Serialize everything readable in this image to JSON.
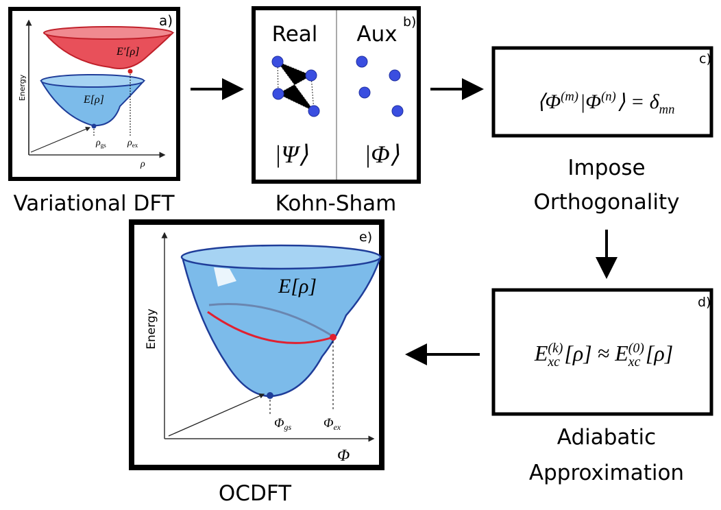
{
  "panels": {
    "a": {
      "label": "a)",
      "caption": "Variational DFT",
      "y_axis": "Energy",
      "x_axis": "ρ",
      "curve_excited": "E′[ρ]",
      "curve_ground": "E[ρ]",
      "point_gs": {
        "symbol": "ρ",
        "sub": "gs"
      },
      "point_ex": {
        "symbol": "ρ",
        "sub": "ex"
      }
    },
    "b": {
      "label": "b)",
      "caption": "Kohn-Sham",
      "left_title": "Real",
      "right_title": "Aux",
      "left_state": "|Ψ⟩",
      "right_state": "|Φ⟩"
    },
    "c": {
      "label": "c)",
      "caption_lines": [
        "Impose",
        "Orthogonality"
      ],
      "equation": [
        {
          "t": "⟨Φ"
        },
        {
          "sup": "(m)"
        },
        {
          "t": "|Φ"
        },
        {
          "sup": "(n)"
        },
        {
          "t": "⟩ = δ"
        },
        {
          "sub": "mn"
        }
      ]
    },
    "d": {
      "label": "d)",
      "caption_lines": [
        "Adiabatic",
        "Approximation"
      ],
      "equation": [
        {
          "t": "E"
        },
        {
          "sup": "(k)",
          "sub": "xc"
        },
        {
          "t": "[ρ] ≈ E"
        },
        {
          "sup": "(0)",
          "sub": "xc"
        },
        {
          "t": "[ρ]"
        }
      ]
    },
    "e": {
      "label": "e)",
      "caption": "OCDFT",
      "y_axis": "Energy",
      "x_axis": "Φ",
      "curve": "E[ρ]",
      "point_gs": {
        "symbol": "Φ",
        "sub": "gs"
      },
      "point_ex": {
        "symbol": "Φ",
        "sub": "ex"
      }
    }
  }
}
